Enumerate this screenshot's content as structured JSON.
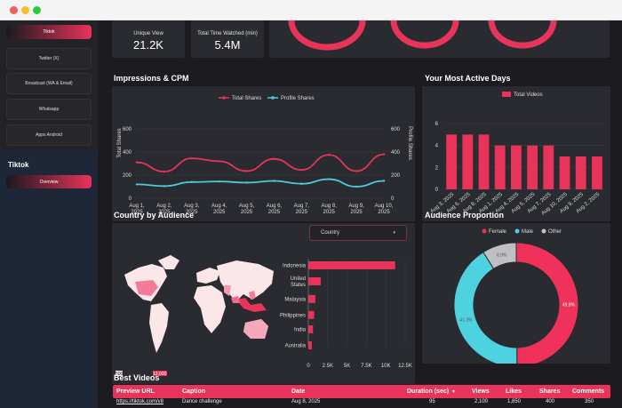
{
  "window": {
    "controls": [
      "close",
      "minimize",
      "maximize"
    ]
  },
  "sidebar": {
    "items": [
      {
        "label": "Tiktok",
        "active": true
      },
      {
        "label": "Twitter (X)",
        "active": false
      },
      {
        "label": "Broadcast (WA & Email)",
        "active": false
      },
      {
        "label": "Whatsapp",
        "active": false
      },
      {
        "label": "Apps Android",
        "active": false
      }
    ],
    "section_title": "Tiktok",
    "section_items": [
      {
        "label": "Overview",
        "active": true
      }
    ]
  },
  "kpis": [
    {
      "label": "Unique View",
      "value": "21.2K"
    },
    {
      "label": "Total Time Watched (min)",
      "value": "5.4M"
    }
  ],
  "impressions": {
    "title": "Impressions & CPM",
    "chart_data": {
      "type": "line",
      "x": [
        "Aug 1, 2025",
        "Aug 2, 2025",
        "Aug 3, 2025",
        "Aug 4, 2025",
        "Aug 5, 2025",
        "Aug 6, 2025",
        "Aug 7, 2025",
        "Aug 8, 2025",
        "Aug 9, 2025",
        "Aug 10, 2025"
      ],
      "x_lines": [
        [
          "Aug 1,",
          "2025"
        ],
        [
          "Aug 2,",
          "2025"
        ],
        [
          "Aug 3,",
          "2025"
        ],
        [
          "Aug 4,",
          "2025"
        ],
        [
          "Aug 5,",
          "2025"
        ],
        [
          "Aug 6,",
          "2025"
        ],
        [
          "Aug 7,",
          "2025"
        ],
        [
          "Aug 8,",
          "2025"
        ],
        [
          "Aug 9,",
          "2025"
        ],
        [
          "Aug 10,",
          "2025"
        ]
      ],
      "series": [
        {
          "name": "Total Shares",
          "color": "#e8335a",
          "values": [
            310,
            230,
            345,
            320,
            235,
            340,
            245,
            375,
            235,
            380
          ]
        },
        {
          "name": "Profile Shares",
          "color": "#4fc9d9",
          "values": [
            120,
            105,
            140,
            145,
            135,
            150,
            125,
            165,
            100,
            150
          ]
        }
      ],
      "yticks": [
        "0",
        "200",
        "400",
        "600"
      ],
      "ylim": [
        0,
        600
      ],
      "ylabel_left": "Total Shares",
      "ylabel_right": "Profile Shares"
    }
  },
  "active_days": {
    "title": "Your Most Active Days",
    "chart_data": {
      "type": "bar",
      "legend": "Total Videos",
      "color": "#e8335a",
      "categories": [
        "Aug 3, 2025",
        "Aug 6, 2025",
        "Aug 8, 2025",
        "Aug 1, 2025",
        "Aug 4, 2025",
        "Aug 5, 2025",
        "Aug 7, 2025",
        "Aug 10, 2025",
        "Aug 9, 2025",
        "Aug 2, 2025"
      ],
      "values": [
        5,
        5,
        5,
        4,
        4,
        4,
        4,
        3,
        3,
        3
      ],
      "yticks": [
        "0",
        "2",
        "4",
        "6"
      ],
      "ylim": [
        0,
        6
      ]
    }
  },
  "country": {
    "title": "Country by Audience",
    "dropdown_label": "Country",
    "dropdown_arrow": "▾",
    "map_legend": [
      "500",
      "12,000"
    ],
    "chart_data": {
      "type": "bar",
      "orientation": "horizontal",
      "color": "#e8335a",
      "categories": [
        "Indonesia",
        "United States",
        "Malaysia",
        "Philippines",
        "India",
        "Australia"
      ],
      "category_lines": [
        [
          "Indonesia"
        ],
        [
          "United",
          "States"
        ],
        [
          "Malaysia"
        ],
        [
          "Philippines"
        ],
        [
          "India"
        ],
        [
          "Australia"
        ]
      ],
      "values": [
        11200,
        1600,
        900,
        750,
        600,
        450
      ],
      "xticks": [
        "0",
        "2.5K",
        "5K",
        "7.5K",
        "10K",
        "12.5K"
      ],
      "xlim": [
        0,
        12500
      ]
    }
  },
  "audience": {
    "title": "Audience Proportion",
    "chart_data": {
      "type": "pie",
      "labels": [
        "Female",
        "Male",
        "Other"
      ],
      "values": [
        49.8,
        41.3,
        8.9
      ],
      "display": [
        "49.8%",
        "41.3%",
        "8.9%"
      ],
      "colors": [
        "#f0315a",
        "#4fd2e0",
        "#c0c0c4"
      ]
    }
  },
  "best_videos": {
    "title": "Best Videos",
    "columns": [
      "Preview URL",
      "Caption",
      "Date",
      "Duration (sec)",
      "Views",
      "Likes",
      "Shares",
      "Comments"
    ],
    "sort_icon": "▼",
    "rows": [
      {
        "url": "https://tiktok.com/v8",
        "caption": "Dance challenge",
        "date": "Aug 8, 2025",
        "duration": "95",
        "views": "2,100",
        "likes": "1,850",
        "shares": "400",
        "comments": "350"
      }
    ]
  }
}
